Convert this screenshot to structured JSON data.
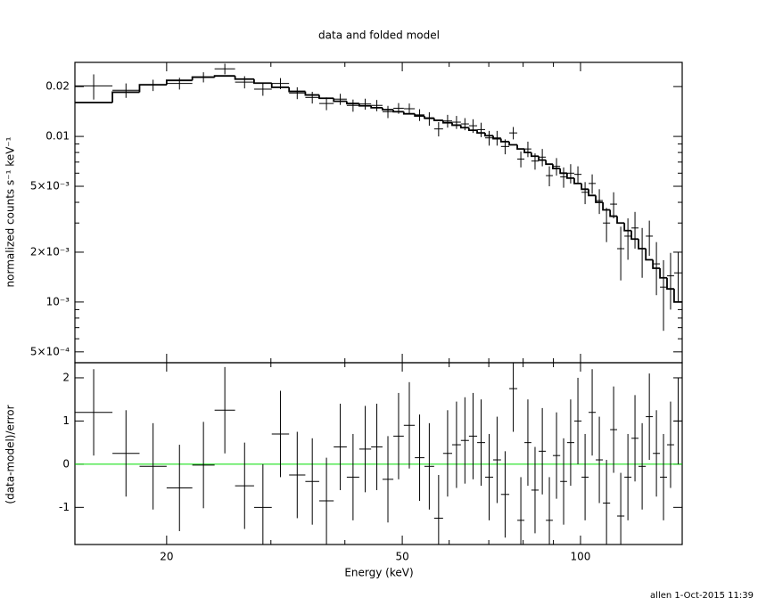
{
  "chart_data": [
    {
      "type": "spectrum",
      "title": "data and folded model",
      "ylabel": "normalized counts s⁻¹ keV⁻¹",
      "log_x": true,
      "log_y": true,
      "xlim": [
        14,
        148.5
      ],
      "ylim": [
        0.00043,
        0.028
      ],
      "yticks": [
        {
          "value": 0.02,
          "label": "0.02"
        },
        {
          "value": 0.01,
          "label": "0.01"
        },
        {
          "value": 0.005,
          "label": "5×10⁻³"
        },
        {
          "value": 0.002,
          "label": "2×10⁻³"
        },
        {
          "value": 0.001,
          "label": "10⁻³"
        },
        {
          "value": 0.0005,
          "label": "5×10⁻⁴"
        }
      ],
      "yminorticks": [
        0.0006,
        0.0007,
        0.0008,
        0.0009,
        0.003,
        0.004,
        0.006,
        0.007,
        0.008,
        0.009
      ],
      "bins": [
        14.0,
        16.2,
        18.0,
        20.0,
        22.1,
        24.1,
        26.1,
        28.1,
        30.1,
        32.2,
        34.3,
        36.2,
        38.3,
        40.3,
        42.3,
        44.3,
        46.3,
        48.3,
        50.3,
        52.5,
        54.5,
        56.6,
        58.6,
        60.7,
        62.8,
        64.8,
        66.9,
        69.0,
        71.2,
        73.4,
        75.8,
        78.2,
        80.4,
        82.6,
        85.0,
        87.4,
        89.8,
        92.4,
        94.9,
        97.6,
        100.4,
        103.2,
        106.1,
        109.1,
        112.2,
        115.3,
        118.6,
        121.9,
        125.3,
        128.9,
        132.5,
        136.2,
        140.0,
        143.9,
        148.5
      ],
      "data": {
        "color": "#000000",
        "values": [
          0.0202,
          0.019,
          0.0204,
          0.0209,
          0.0228,
          0.0256,
          0.0213,
          0.0193,
          0.0209,
          0.0183,
          0.0172,
          0.0158,
          0.0168,
          0.0154,
          0.0157,
          0.0154,
          0.0141,
          0.0148,
          0.0147,
          0.0135,
          0.0128,
          0.0111,
          0.0124,
          0.0122,
          0.0119,
          0.0116,
          0.011,
          0.0098,
          0.0098,
          0.0087,
          0.0105,
          0.0073,
          0.0084,
          0.0071,
          0.0075,
          0.0058,
          0.0066,
          0.0057,
          0.006,
          0.0059,
          0.0046,
          0.0052,
          0.0041,
          0.003,
          0.0039,
          0.0021,
          0.0025,
          0.0028,
          0.0021,
          0.0025,
          0.0017,
          0.00123,
          0.00144,
          0.0015
        ],
        "errors": [
          0.0035,
          0.0019,
          0.0016,
          0.0017,
          0.0016,
          0.0019,
          0.0018,
          0.0017,
          0.0016,
          0.0015,
          0.0014,
          0.0014,
          0.0013,
          0.0013,
          0.0012,
          0.0012,
          0.0012,
          0.0011,
          0.0011,
          0.0011,
          0.0012,
          0.0011,
          0.0011,
          0.0011,
          0.001,
          0.0011,
          0.0011,
          0.001,
          0.001,
          0.0009,
          0.0009,
          0.0008,
          0.0009,
          0.0008,
          0.0009,
          0.0008,
          0.0008,
          0.0008,
          0.0008,
          0.0007,
          0.0007,
          0.0007,
          0.0007,
          0.0007,
          0.0007,
          0.00075,
          0.0007,
          0.0007,
          0.0007,
          0.0006,
          0.0006,
          0.00056,
          0.00054,
          0.0005
        ]
      },
      "model": {
        "color": "#000000",
        "values": [
          0.016,
          0.0185,
          0.0205,
          0.0218,
          0.0228,
          0.0232,
          0.0222,
          0.021,
          0.0198,
          0.0187,
          0.0178,
          0.017,
          0.0163,
          0.0158,
          0.0153,
          0.0149,
          0.0145,
          0.0141,
          0.0137,
          0.0133,
          0.0129,
          0.0125,
          0.0121,
          0.0117,
          0.0113,
          0.0109,
          0.0105,
          0.0101,
          0.0097,
          0.0093,
          0.0089,
          0.0084,
          0.008,
          0.0076,
          0.0072,
          0.0068,
          0.0064,
          0.006,
          0.0056,
          0.0052,
          0.0048,
          0.0044,
          0.004,
          0.0036,
          0.0033,
          0.003,
          0.0027,
          0.0024,
          0.0021,
          0.0018,
          0.0016,
          0.0014,
          0.0012,
          0.001
        ]
      }
    },
    {
      "type": "residual",
      "xlabel": "Energy (keV)",
      "ylabel": "(data-model)/error",
      "log_x": true,
      "xlim": [
        14,
        148.5
      ],
      "ylim": [
        -1.86,
        2.35
      ],
      "xticks": [
        20,
        50,
        100
      ],
      "xminorticks": [
        30,
        40,
        60,
        70,
        80,
        90
      ],
      "yticks": [
        -1,
        0,
        1,
        2
      ],
      "color": "#000000",
      "values": [
        1.2,
        0.25,
        -0.05,
        -0.55,
        -0.02,
        1.25,
        -0.5,
        -1.0,
        0.7,
        -0.25,
        -0.4,
        -0.85,
        0.4,
        -0.3,
        0.35,
        0.4,
        -0.35,
        0.65,
        0.9,
        0.15,
        -0.05,
        -1.25,
        0.25,
        0.45,
        0.55,
        0.65,
        0.5,
        -0.3,
        0.1,
        -0.7,
        1.75,
        -1.3,
        0.5,
        -0.6,
        0.3,
        -1.3,
        0.2,
        -0.4,
        0.5,
        1.0,
        -0.3,
        1.2,
        0.1,
        -0.9,
        0.8,
        -1.2,
        -0.3,
        0.6,
        -0.05,
        1.1,
        0.25,
        -0.3,
        0.45,
        1.0
      ],
      "errors": [
        1,
        1,
        1,
        1,
        1,
        1,
        1,
        1,
        1,
        1,
        1,
        1,
        1,
        1,
        1,
        1,
        1,
        1,
        1,
        1,
        1,
        1,
        1,
        1,
        1,
        1,
        1,
        1,
        1,
        1,
        1,
        1,
        1,
        1,
        1,
        1,
        1,
        1,
        1,
        1,
        1,
        1,
        1,
        1,
        1,
        1,
        1,
        1,
        1,
        1,
        1,
        1,
        1,
        1
      ],
      "zero_line": {
        "value": 0,
        "color": "#00dd00"
      }
    }
  ],
  "footer": "allen  1-Oct-2015 11:39"
}
